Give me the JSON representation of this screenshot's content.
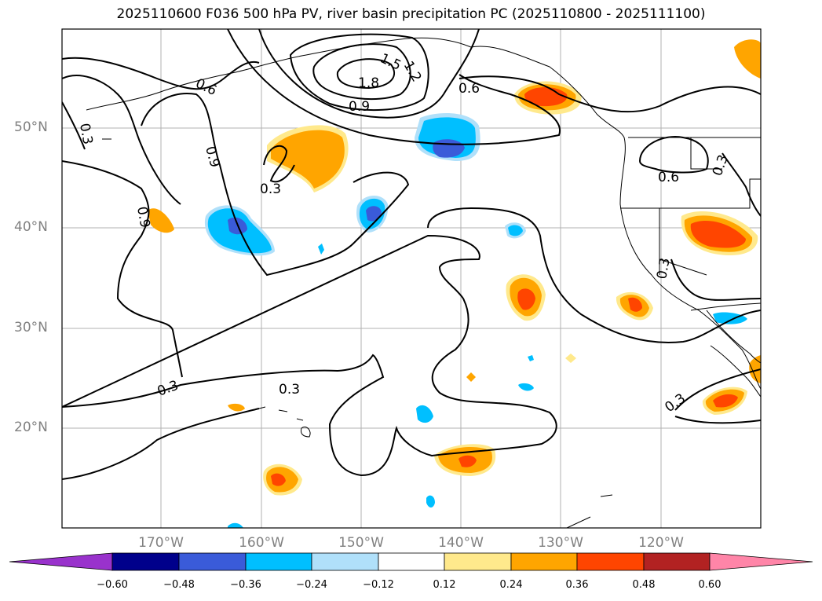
{
  "title": "2025110600 F036 500 hPa PV, river basin precipitation PC (2025110800 - 2025111100)",
  "map": {
    "projection": "PlateCarree",
    "lon_range": [
      -180,
      -110
    ],
    "lat_range": [
      10,
      60
    ],
    "lat_ticks": [
      "50°N",
      "40°N",
      "30°N",
      "20°N"
    ],
    "lon_ticks": [
      "170°W",
      "160°W",
      "150°W",
      "140°W",
      "130°W",
      "120°W"
    ],
    "contour_labels": [
      "1.8",
      "1.5",
      "1.2",
      "0.9",
      "0.9",
      "0.9",
      "0.6",
      "0.6",
      "0.6",
      "0.3",
      "0.3",
      "0.3",
      "0.3",
      "0.3",
      "0.3",
      "0.3"
    ],
    "grid": true
  },
  "colorbar": {
    "ticks": [
      "−0.60",
      "−0.48",
      "−0.36",
      "−0.24",
      "−0.12",
      "0.12",
      "0.24",
      "0.36",
      "0.48",
      "0.60"
    ],
    "colors": [
      "#9932CC",
      "#00008B",
      "#3A5BD9",
      "#00BFFF",
      "#B0E0FA",
      "#FFFFFF",
      "#FFE98C",
      "#FFA500",
      "#FF4500",
      "#B22222",
      "#FF85A8"
    ],
    "extend": "both"
  }
}
